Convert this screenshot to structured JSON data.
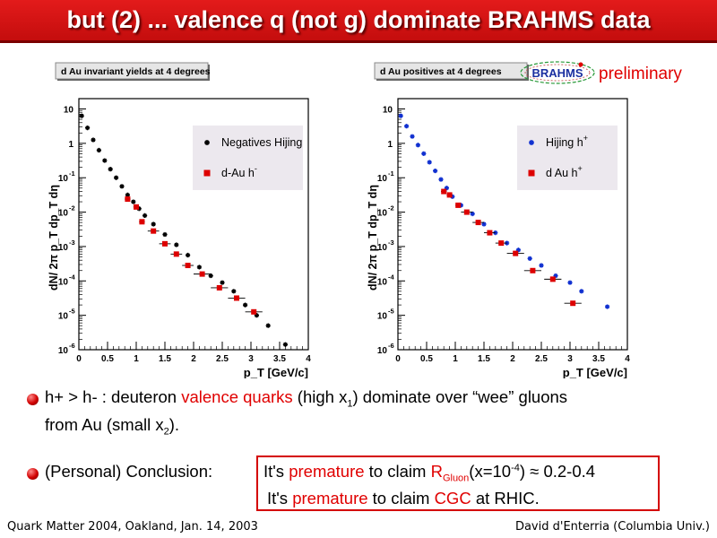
{
  "slide": {
    "title": "but (2) ... valence q (not g) dominate BRAHMS data",
    "logo_text": "BRAHMS",
    "preliminary": "preliminary",
    "bullet1": {
      "p1": "h+ > h- :  deuteron ",
      "p2": "valence quarks",
      "p3": " (high x",
      "p4": "1",
      "p5": ") dominate over “wee” gluons",
      "p6": "from Au (small x",
      "p7": "2",
      "p8": ")."
    },
    "bullet2": {
      "label": "(Personal) Conclusion:",
      "l1a": "It's ",
      "l1b": "premature",
      "l1c": " to claim ",
      "l1d": "R",
      "l1e": "Gluon",
      "l1f": "(x=10",
      "l1g": "-4",
      "l1h": ") ≈ 0.2-0.4",
      "l2a": "It's ",
      "l2b": "premature",
      "l2c": " to claim ",
      "l2d": "CGC",
      "l2e": " at RHIC."
    },
    "footer_left": "Quark Matter 2004, Oakland, Jan. 14, 2003",
    "footer_right": "David d'Enterria (Columbia Univ.)"
  },
  "colors": {
    "accent_red": "#e00000",
    "series_red": "#dd0000",
    "series_blue": "#1030d0",
    "legend_bg": "#ece8ee"
  },
  "chart_data": [
    {
      "type": "scatter",
      "title": "d Au invariant yields at 4 degrees",
      "xlabel": "p_T [GeV/c]",
      "ylabel": "dN/ 2π p_T dp_T dη",
      "xlim": [
        0,
        4
      ],
      "ylim_log10": [
        -6,
        1.3
      ],
      "log_y": true,
      "x_ticks": [
        "0",
        "0.5",
        "1",
        "1.5",
        "2",
        "2.5",
        "3",
        "3.5",
        "4"
      ],
      "y_ticks": [
        {
          "base": "10",
          "exp": "-6"
        },
        {
          "base": "10",
          "exp": "-5"
        },
        {
          "base": "10",
          "exp": "-4"
        },
        {
          "base": "10",
          "exp": "-3"
        },
        {
          "base": "10",
          "exp": "-2"
        },
        {
          "base": "10",
          "exp": "-1"
        },
        {
          "base": "1",
          "exp": ""
        },
        {
          "base": "10",
          "exp": ""
        }
      ],
      "legend_position": "top-right",
      "legend": [
        {
          "label": "Negatives Hijing",
          "sup": "",
          "marker": "star",
          "color": "#000000"
        },
        {
          "label": "d-Au h",
          "sup": "-",
          "marker": "square",
          "color": "#dd0000"
        }
      ],
      "series": [
        {
          "name": "Negatives Hijing",
          "marker": "star",
          "color": "#000000",
          "x": [
            0.05,
            0.15,
            0.25,
            0.35,
            0.45,
            0.55,
            0.65,
            0.75,
            0.85,
            0.95,
            1.05,
            1.15,
            1.3,
            1.5,
            1.7,
            1.9,
            2.1,
            2.3,
            2.5,
            2.7,
            2.9,
            3.1,
            3.3,
            3.6
          ],
          "log_y": [
            0.8,
            0.45,
            0.1,
            -0.2,
            -0.5,
            -0.75,
            -1.0,
            -1.25,
            -1.5,
            -1.7,
            -1.9,
            -2.1,
            -2.35,
            -2.65,
            -2.95,
            -3.25,
            -3.6,
            -3.85,
            -4.05,
            -4.3,
            -4.7,
            -5.0,
            -5.3,
            -5.85
          ]
        },
        {
          "name": "d-Au h-",
          "marker": "square",
          "color": "#dd0000",
          "x": [
            0.85,
            1.0,
            1.1,
            1.3,
            1.5,
            1.7,
            1.9,
            2.15,
            2.45,
            2.75,
            3.05
          ],
          "log_y": [
            -1.62,
            -1.85,
            -2.28,
            -2.55,
            -2.92,
            -3.22,
            -3.55,
            -3.8,
            -4.2,
            -4.5,
            -4.9
          ],
          "xerr": [
            0.05,
            0.05,
            0.05,
            0.1,
            0.1,
            0.1,
            0.1,
            0.15,
            0.15,
            0.15,
            0.15
          ]
        }
      ]
    },
    {
      "type": "scatter",
      "title": "d Au positives at 4 degrees",
      "xlabel": "p_T [GeV/c]",
      "ylabel": "dN/ 2π p_T dp_T dη",
      "xlim": [
        0,
        4
      ],
      "ylim_log10": [
        -6,
        1.3
      ],
      "log_y": true,
      "x_ticks": [
        "0",
        "0.5",
        "1",
        "1.5",
        "2",
        "2.5",
        "3",
        "3.5",
        "4"
      ],
      "y_ticks": [
        {
          "base": "10",
          "exp": "-6"
        },
        {
          "base": "10",
          "exp": "-5"
        },
        {
          "base": "10",
          "exp": "-4"
        },
        {
          "base": "10",
          "exp": "-3"
        },
        {
          "base": "10",
          "exp": "-2"
        },
        {
          "base": "10",
          "exp": "-1"
        },
        {
          "base": "1",
          "exp": ""
        },
        {
          "base": "10",
          "exp": ""
        }
      ],
      "legend_position": "top-right",
      "legend": [
        {
          "label": "Hijing h",
          "sup": "+",
          "marker": "star",
          "color": "#1030d0"
        },
        {
          "label": "d Au h",
          "sup": "+",
          "marker": "square",
          "color": "#dd0000"
        }
      ],
      "series": [
        {
          "name": "Hijing h+",
          "marker": "star",
          "color": "#1030d0",
          "x": [
            0.05,
            0.15,
            0.25,
            0.35,
            0.45,
            0.55,
            0.65,
            0.75,
            0.85,
            0.95,
            1.1,
            1.3,
            1.5,
            1.7,
            1.9,
            2.1,
            2.3,
            2.5,
            2.75,
            3.0,
            3.2,
            3.65
          ],
          "log_y": [
            0.8,
            0.5,
            0.2,
            -0.05,
            -0.3,
            -0.55,
            -0.8,
            -1.05,
            -1.3,
            -1.55,
            -1.8,
            -2.05,
            -2.35,
            -2.6,
            -2.9,
            -3.1,
            -3.35,
            -3.55,
            -3.85,
            -4.05,
            -4.3,
            -4.75
          ]
        },
        {
          "name": "d Au h+",
          "marker": "square",
          "color": "#dd0000",
          "x": [
            0.8,
            0.9,
            1.05,
            1.2,
            1.4,
            1.6,
            1.8,
            2.05,
            2.35,
            2.7,
            3.05
          ],
          "log_y": [
            -1.4,
            -1.5,
            -1.8,
            -2.0,
            -2.3,
            -2.6,
            -2.9,
            -3.2,
            -3.7,
            -3.95,
            -4.65
          ],
          "xerr": [
            0.05,
            0.05,
            0.05,
            0.1,
            0.1,
            0.1,
            0.1,
            0.15,
            0.15,
            0.15,
            0.15
          ]
        }
      ]
    }
  ]
}
